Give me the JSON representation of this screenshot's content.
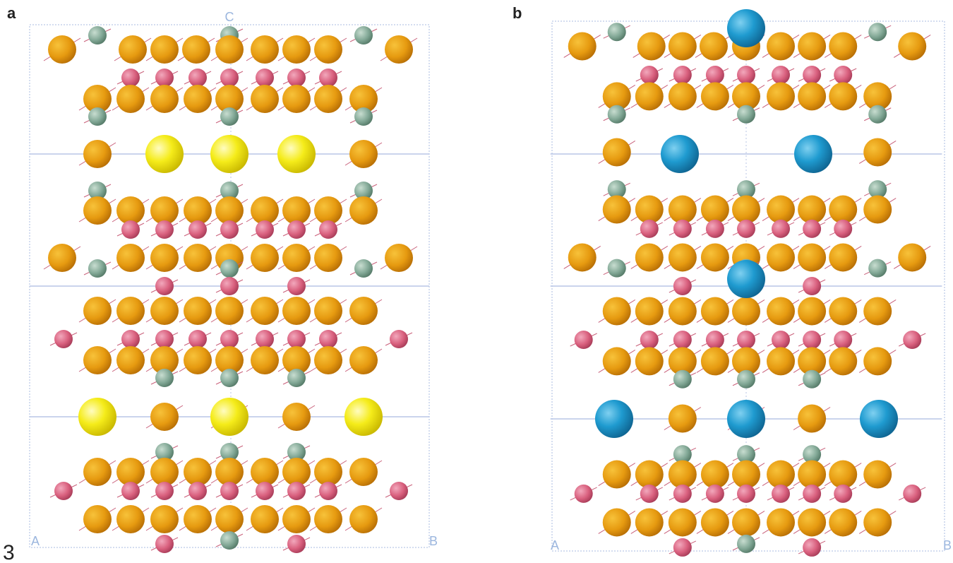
{
  "figure_number": "3",
  "panels": [
    {
      "label": "a",
      "axis_labels": {
        "top": "C",
        "bottom_left": "A",
        "bottom_right": "B"
      }
    },
    {
      "label": "b",
      "axis_labels": {
        "bottom_left": "A",
        "bottom_right": "B"
      }
    }
  ]
}
